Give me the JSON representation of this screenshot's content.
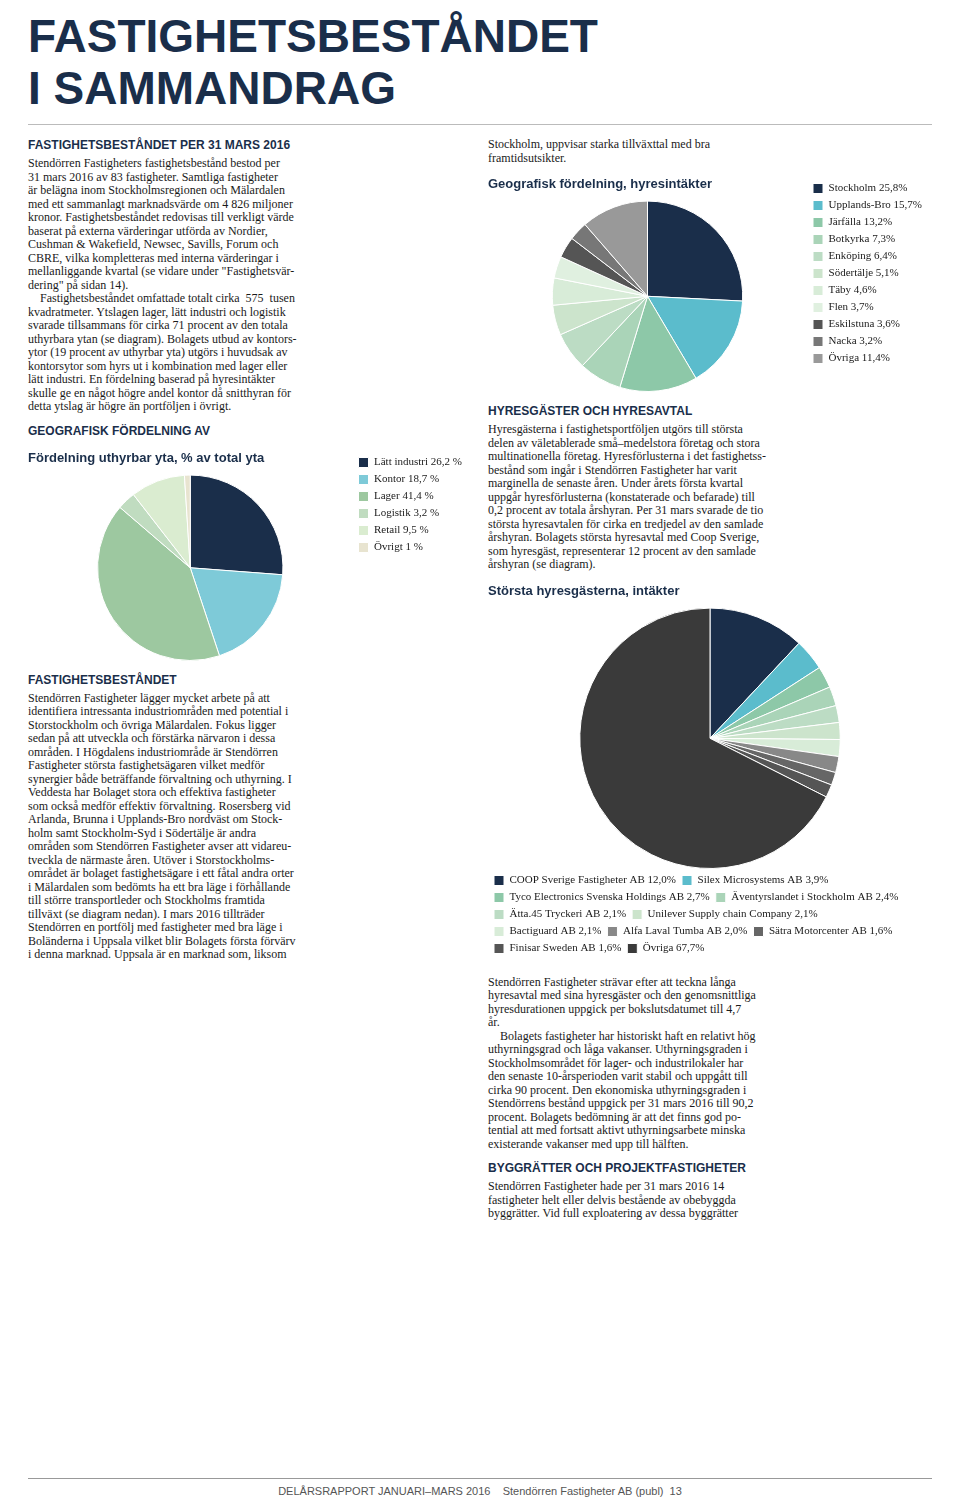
{
  "chart_data": [
    {
      "type": "pie",
      "title": "Fördelning uthyrbar yta, % av total yta",
      "categories": [
        "Lätt industri 26,2 %",
        "Kontor 18,7 %",
        "Lager 41,4 %",
        "Logistik 3,2 %",
        "Retail 9,5 %",
        "Övrigt 1 %"
      ],
      "values": [
        26.2,
        18.7,
        41.4,
        3.2,
        9.5,
        1.0
      ],
      "colors": [
        "#1a2e4a",
        "#7ecad8",
        "#9dc8a0",
        "#c0dcc0",
        "#daecd0",
        "#e8e4d0"
      ],
      "annotations": [
        "FASTIGHETSBESTÅNDET",
        "I SAMMANDRAG",
        "FASTIGHETSBESTÅNDET PER 31 MARS 2016",
        "Stendörren Fastigheters fastighetsbestånd bestod per",
        "31 mars 2016 av 83 fastigheter. Samtliga fastigheter",
        "är belägna inom Stockholmsregionen och Mälardalen",
        "med ett sammanlagt marknadsvärde om 4 826 miljoner",
        "kronor. Fastighetsbeståndet redovisas till verkligt värde",
        "baserat på externa värderingar utförda av Nordier,",
        "Cushman & Wakefield, Newsec, Savills, Forum och",
        "CBRE, vilka kompletteras med interna värderingar i",
        "mellanliggande kvartal (se vidare under \"Fastighetsvär-",
        "dering\" på sidan 14).",
        "    Fastighetsbeståndet omfattade totalt cirka  575  tusen",
        "kvadratmeter. Ytslagen lager, lätt industri och logistik",
        "svarade tillsammans för cirka 71 procent av den totala",
        "uthyrbara ytan (se diagram). Bolagets utbud av kontors-",
        "ytor (19 procent av uthyrbar yta) utgörs i huvudsak av",
        "kontorsytor som hyrs ut i kombination med lager eller",
        "lätt industri. En fördelning baserad på hyresintäkter",
        "skulle ge en något högre andel kontor då snitthyran för",
        "detta ytslag är högre än portföljen i övrigt.",
        "GEOGRAFISK FÖRDELNING AV",
        "FASTIGHETSBESTÅNDET",
        "Stendörren Fastigheter lägger mycket arbete på att",
        "identifiera intressanta industriområden med potential i",
        "Storstockholm och övriga Mälardalen. Fokus ligger",
        "sedan på att utveckla och förstärka närvaron i dessa",
        "områden. I Högdalens industriområde är Stendörren",
        "Fastigheter största fastighetsägaren vilket medför",
        "synergier både beträffande förvaltning och uthyrning. I",
        "Veddesta har Bolaget stora och effektiva fastigheter",
        "som också medför effektiv förvaltning. Rosersberg vid",
        "Arlanda, Brunna i Upplands-Bro nordväst om Stock-",
        "holm samt Stockholm-Syd i Södertälje är andra",
        "områden som Stendörren Fastigheter avser att vidareu-",
        "tveckla de närmaste åren. Utöver i Storstockholms-",
        "området är bolaget fastighetsägare i ett fåtal andra orter",
        "i Mälardalen som bedömts ha ett bra läge i förhållande",
        "till större transportleder och Stockholms framtida",
        "tillväxt (se diagram nedan). I mars 2016 tillträder",
        "Stendörren en portfölj med fastigheter med bra läge i",
        "Boländerna i Uppsala vilket blir Bolagets första förvärv",
        "i denna marknad. Uppsala är en marknad som, liksom"
      ]
    },
    {
      "type": "pie",
      "title": "Geografisk fördelning, hyresintäkter",
      "categories": [
        "Stockholm 25,8%",
        "Upplands-Bro 15,7%",
        "Järfälla 13,2%",
        "Botkyrka 7,3%",
        "Enköping 6,4%",
        "Södertälje 5,1%",
        "Täby 4,6%",
        "Flen 3,7%",
        "Eskilstuna 3,6%",
        "Nacka 3,2%",
        "Övriga 11,4%"
      ],
      "values": [
        25.8,
        15.7,
        13.2,
        7.3,
        6.4,
        5.1,
        4.6,
        3.7,
        3.6,
        3.2,
        11.4
      ],
      "colors": [
        "#1a2e4a",
        "#5bbccc",
        "#8dc8a8",
        "#aad4b8",
        "#bcdcc4",
        "#cce4cc",
        "#d8ecd8",
        "#e0f0e0",
        "#555555",
        "#777777",
        "#999999"
      ],
      "annotations": [
        "Stockholm, uppvisar starka tillväxttal med bra",
        "framtidsutsikter.",
        "HYRESGÄSTER OCH HYRESAVTAL",
        "Hyresgästerna i fastighetsportföljen utgörs till största",
        "delen av väletablerade små–medelstora företag och stora",
        "multinationella företag. Hyresförlusterna i det fastighetss-",
        "bestånd som ingår i Stendörren Fastigheter har varit",
        "marginella de senaste åren. Under årets första kvartal",
        "uppgår hyresförlusterna (konstaterade och befarade) till",
        "0,2 procent av totala årshyran. Per 31 mars svarade de tio",
        "största hyresavtalen för cirka en tredjedel av den samlade",
        "årshyran. Bolagets största hyresavtal med Coop Sverige,",
        "som hyresgäst, representerar 12 procent av den samlade",
        "årshyran (se diagram)."
      ]
    },
    {
      "type": "pie",
      "title": "Största hyresgästerna, intäkter",
      "categories": [
        "COOP Sverige Fastigheter AB 12,0%",
        "Silex Microsystems AB 3,9%",
        "Tyco Electronics Svenska Holdings AB 2,7%",
        "Äventyrslandet i Stockholm AB 2,4%",
        "Ätta.45 Tryckeri AB 2,1%",
        "Unilever Supply chain Company 2,1%",
        "Bactiguard AB 2,1%",
        "Alfa Laval Tumba AB 2,0%",
        "Sätra Motorcenter AB 1,6%",
        "Finisar Sweden AB 1,6%",
        "Övriga 67,7%"
      ],
      "values": [
        12.0,
        3.9,
        2.7,
        2.4,
        2.1,
        2.1,
        2.1,
        2.0,
        1.6,
        1.6,
        67.7
      ],
      "colors": [
        "#1a2e4a",
        "#5bbccc",
        "#8dc8a8",
        "#aad4b8",
        "#bcdcc4",
        "#cce4cc",
        "#d8ecd8",
        "#888888",
        "#666666",
        "#555555",
        "#3a3a3a"
      ],
      "annotations": [
        "Stendörren Fastigheter strävar efter att teckna långa",
        "hyresavtal med sina hyresgäster och den genomsnittliga",
        "hyresdurationen uppgick per bokslutsdatumet till 4,7",
        "år.",
        "    Bolagets fastigheter har historiskt haft en relativt hög",
        "uthyrningsgrad och låga vakanser. Uthyrningsgraden i",
        "Stockholmsområdet för lager- och industrilokaler har",
        "den senaste 10-årsperioden varit stabil och uppgått till",
        "cirka 90 procent. Den ekonomiska uthyrningsgraden i",
        "Stendörrens bestånd uppgick per 31 mars 2016 till 90,2",
        "procent. Bolagets bedömning är att det finns god po-",
        "tential att med fortsatt aktivt uthyrningsarbete minska",
        "existerande vakanser med upp till hälften.",
        "BYGGRÄTTER OCH PROJEKTFASTIGHETER",
        "Stendörren Fastigheter hade per 31 mars 2016 14",
        "fastigheter helt eller delvis bestående av obebyggda",
        "byggrätter. Vid full exploatering av dessa byggrätter",
        "DELÅRSRAPPORT JANUARI–MARS 2016    Stendörren Fastigheter AB (publ)  13"
      ]
    }
  ]
}
